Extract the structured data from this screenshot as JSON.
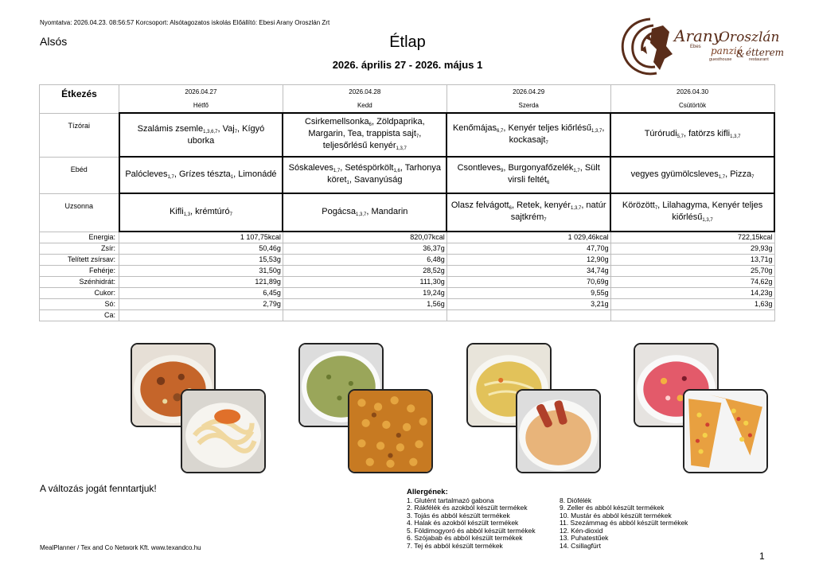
{
  "header": {
    "print_info": "Nyomtatva: 2026.04.23. 08:56:57 Korcsoport: Alsótagozatos iskolás Előállító: Ebesi Arany Oroszlán Zrt",
    "level": "Alsós",
    "title": "Étlap",
    "date_range": "2026. április 27 - 2026. május 1"
  },
  "logo": {
    "brand_part1": "Arany",
    "brand_part2": "Oroszlán",
    "prefix": "Ebes",
    "tagline1": "panzió",
    "amp": "&",
    "tagline2": "étterem",
    "sub1": "guesthouse",
    "sub2": "restaurant",
    "color": "#5a2d1a"
  },
  "table": {
    "corner_label": "Étkezés",
    "days": [
      {
        "date": "2026.04.27",
        "day": "Hétfő"
      },
      {
        "date": "2026.04.28",
        "day": "Kedd"
      },
      {
        "date": "2026.04.29",
        "day": "Szerda"
      },
      {
        "date": "2026.04.30",
        "day": "Csütörtök"
      }
    ],
    "meal_rows": [
      {
        "label": "Tízórai",
        "cells": [
          [
            {
              "t": "Szalámis zsemle",
              "a": "1,3,6,7"
            },
            {
              "t": ", Vaj",
              "a": "7"
            },
            {
              "t": ", Kígyó uborka",
              "a": ""
            }
          ],
          [
            {
              "t": "Csirkemellsonka",
              "a": "6"
            },
            {
              "t": ", Zöldpaprika, Margarin, Tea, trappista sajt",
              "a": "7"
            },
            {
              "t": ", teljesőrlésű kenyér",
              "a": "1,3,7"
            }
          ],
          [
            {
              "t": "Kenőmájas",
              "a": "6,7"
            },
            {
              "t": ", Kenyér teljes kiőrlésű",
              "a": "1,3,7"
            },
            {
              "t": ", kockasajt",
              "a": "7"
            }
          ],
          [
            {
              "t": "Túrórudi",
              "a": "5,7"
            },
            {
              "t": ", fatörzs kifli",
              "a": "1,3,7"
            }
          ]
        ]
      },
      {
        "label": "Ebéd",
        "cells": [
          [
            {
              "t": "Palócleves",
              "a": "1,7"
            },
            {
              "t": ", Grízes tészta",
              "a": "1"
            },
            {
              "t": ", Limonádé",
              "a": ""
            }
          ],
          [
            {
              "t": "Sóskaleves",
              "a": "1,7"
            },
            {
              "t": ", Setéspörkölt",
              "a": "1,6"
            },
            {
              "t": ", Tarhonya köret",
              "a": "1"
            },
            {
              "t": ", Savanyúság",
              "a": ""
            }
          ],
          [
            {
              "t": "Csontleves",
              "a": "9"
            },
            {
              "t": ", Burgonyafőzelék",
              "a": "1,7"
            },
            {
              "t": ", Sült virsli feltét",
              "a": "6"
            }
          ],
          [
            {
              "t": "vegyes gyümölcsleves",
              "a": "1,7"
            },
            {
              "t": ", Pizza",
              "a": "7"
            }
          ]
        ]
      },
      {
        "label": "Uzsonna",
        "cells": [
          [
            {
              "t": "Kifli",
              "a": "1,3"
            },
            {
              "t": ", krémtúró",
              "a": "7"
            }
          ],
          [
            {
              "t": "Pogácsa",
              "a": "1,3,7"
            },
            {
              "t": ", Mandarin",
              "a": ""
            }
          ],
          [
            {
              "t": "Olasz felvágott",
              "a": "6"
            },
            {
              "t": ", Retek, kenyér",
              "a": "1,3,7"
            },
            {
              "t": ", natúr sajtkrém",
              "a": "7"
            }
          ],
          [
            {
              "t": "Körözött",
              "a": "7"
            },
            {
              "t": ", Lilahagyma, Kenyér teljes kiőrlésű",
              "a": "1,3,7"
            }
          ]
        ]
      }
    ],
    "nutrition": [
      {
        "label": "Energia:",
        "values": [
          "1 107,75kcal",
          "820,07kcal",
          "1 029,46kcal",
          "722,15kcal"
        ]
      },
      {
        "label": "Zsír:",
        "values": [
          "50,46g",
          "36,37g",
          "47,70g",
          "29,93g"
        ]
      },
      {
        "label": "Telített zsírsav:",
        "values": [
          "15,53g",
          "6,48g",
          "12,90g",
          "13,71g"
        ]
      },
      {
        "label": "Fehérje:",
        "values": [
          "31,50g",
          "28,52g",
          "34,74g",
          "25,70g"
        ]
      },
      {
        "label": "Szénhidrát:",
        "values": [
          "121,89g",
          "111,30g",
          "70,69g",
          "74,62g"
        ]
      },
      {
        "label": "Cukor:",
        "values": [
          "6,45g",
          "19,24g",
          "9,55g",
          "14,23g"
        ]
      },
      {
        "label": "Só:",
        "values": [
          "2,79g",
          "1,56g",
          "3,21g",
          "1,63g"
        ]
      },
      {
        "label": "Ca:",
        "values": [
          "",
          "",
          "",
          ""
        ]
      }
    ]
  },
  "disclaimer": "A változás jogát fenntartjuk!",
  "allergens": {
    "heading": "Allergének:",
    "col1": [
      "1. Glutént tartalmazó gabona",
      "2. Rákfélék és azokból készült termékek",
      "3. Tojás és abból készült termékek",
      "4. Halak és azokból készült termékek",
      "5. Földimogyoró és abból készült termékek",
      "6. Szójabab és abból készült termékek",
      "7. Tej és abból készült termékek"
    ],
    "col2": [
      "8. Diófélék",
      "9. Zeller és abból készült termékek",
      "10. Mustár és abból készült termékek",
      "11. Szezámmag és abból készült termékek",
      "12. Kén-dioxid",
      "13. Puhatestűek",
      "14. Csillagfürt"
    ]
  },
  "footer": "MealPlanner / Tex and Co Network Kft. www.texandco.hu",
  "page_number": "1"
}
